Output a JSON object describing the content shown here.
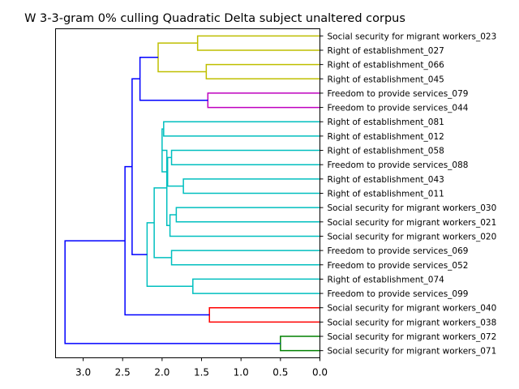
{
  "chart_data": {
    "type": "dendrogram",
    "orientation": "left",
    "title": "W 3-3-gram 0% culling Quadratic Delta subject unaltered corpus",
    "xlabel": "",
    "ylabel": "",
    "xlim": [
      3.35,
      0.0
    ],
    "xticks": [
      3.0,
      2.5,
      2.0,
      1.5,
      1.0,
      0.5,
      0.0
    ],
    "xtick_labels": [
      "3.0",
      "2.5",
      "2.0",
      "1.5",
      "1.0",
      "0.5",
      "0.0"
    ],
    "grid": false,
    "leaves": [
      "Social security for migrant workers_023",
      "Right of establishment_027",
      "Right of establishment_066",
      "Right of establishment_045",
      "Freedom to provide services_079",
      "Freedom to provide services_044",
      "Right of establishment_081",
      "Right of establishment_012",
      "Right of establishment_058",
      "Freedom to provide services_088",
      "Right of establishment_043",
      "Right of establishment_011",
      "Social security for migrant workers_030",
      "Social security for migrant workers_021",
      "Social security for migrant workers_020",
      "Freedom to provide services_069",
      "Freedom to provide services_052",
      "Right of establishment_074",
      "Freedom to provide services_099",
      "Social security for migrant workers_040",
      "Social security for migrant workers_038",
      "Social security for migrant workers_072",
      "Social security for migrant workers_071"
    ],
    "colors": {
      "yellow": "#bfbf00",
      "magenta": "#bf00bf",
      "cyan": "#00bfbf",
      "red": "#ff0000",
      "green": "#008000",
      "blue": "#0000ff"
    },
    "merges": [
      {
        "left": "L0",
        "right": "L1",
        "height": 1.55,
        "color": "yellow"
      },
      {
        "left": "L2",
        "right": "L3",
        "height": 1.44,
        "color": "yellow"
      },
      {
        "left": "M0",
        "right": "M1",
        "height": 2.05,
        "color": "yellow"
      },
      {
        "left": "L4",
        "right": "L5",
        "height": 1.42,
        "color": "magenta"
      },
      {
        "left": "M2",
        "right": "M3",
        "height": 2.28,
        "color": "blue"
      },
      {
        "left": "L6",
        "right": "L7",
        "height": 1.98,
        "color": "cyan"
      },
      {
        "left": "L8",
        "right": "L9",
        "height": 1.88,
        "color": "cyan"
      },
      {
        "left": "L10",
        "right": "L11",
        "height": 1.73,
        "color": "cyan"
      },
      {
        "left": "M6",
        "right": "M7",
        "height": 1.93,
        "color": "cyan"
      },
      {
        "left": "M5",
        "right": "M8",
        "height": 2.0,
        "color": "cyan"
      },
      {
        "left": "L12",
        "right": "L13",
        "height": 1.82,
        "color": "cyan"
      },
      {
        "left": "M10",
        "right": "L14",
        "height": 1.9,
        "color": "cyan"
      },
      {
        "left": "M9",
        "right": "M11",
        "height": 1.94,
        "color": "cyan"
      },
      {
        "left": "L15",
        "right": "L16",
        "height": 1.88,
        "color": "cyan"
      },
      {
        "left": "M12",
        "right": "M13",
        "height": 2.1,
        "color": "cyan"
      },
      {
        "left": "L17",
        "right": "L18",
        "height": 1.61,
        "color": "cyan"
      },
      {
        "left": "M14",
        "right": "M15",
        "height": 2.19,
        "color": "cyan"
      },
      {
        "left": "M4",
        "right": "M16",
        "height": 2.38,
        "color": "blue"
      },
      {
        "left": "L19",
        "right": "L20",
        "height": 1.4,
        "color": "red"
      },
      {
        "left": "M17",
        "right": "M18",
        "height": 2.47,
        "color": "blue"
      },
      {
        "left": "L21",
        "right": "L22",
        "height": 0.5,
        "color": "green"
      },
      {
        "left": "M19",
        "right": "M20",
        "height": 3.23,
        "color": "blue"
      }
    ]
  }
}
